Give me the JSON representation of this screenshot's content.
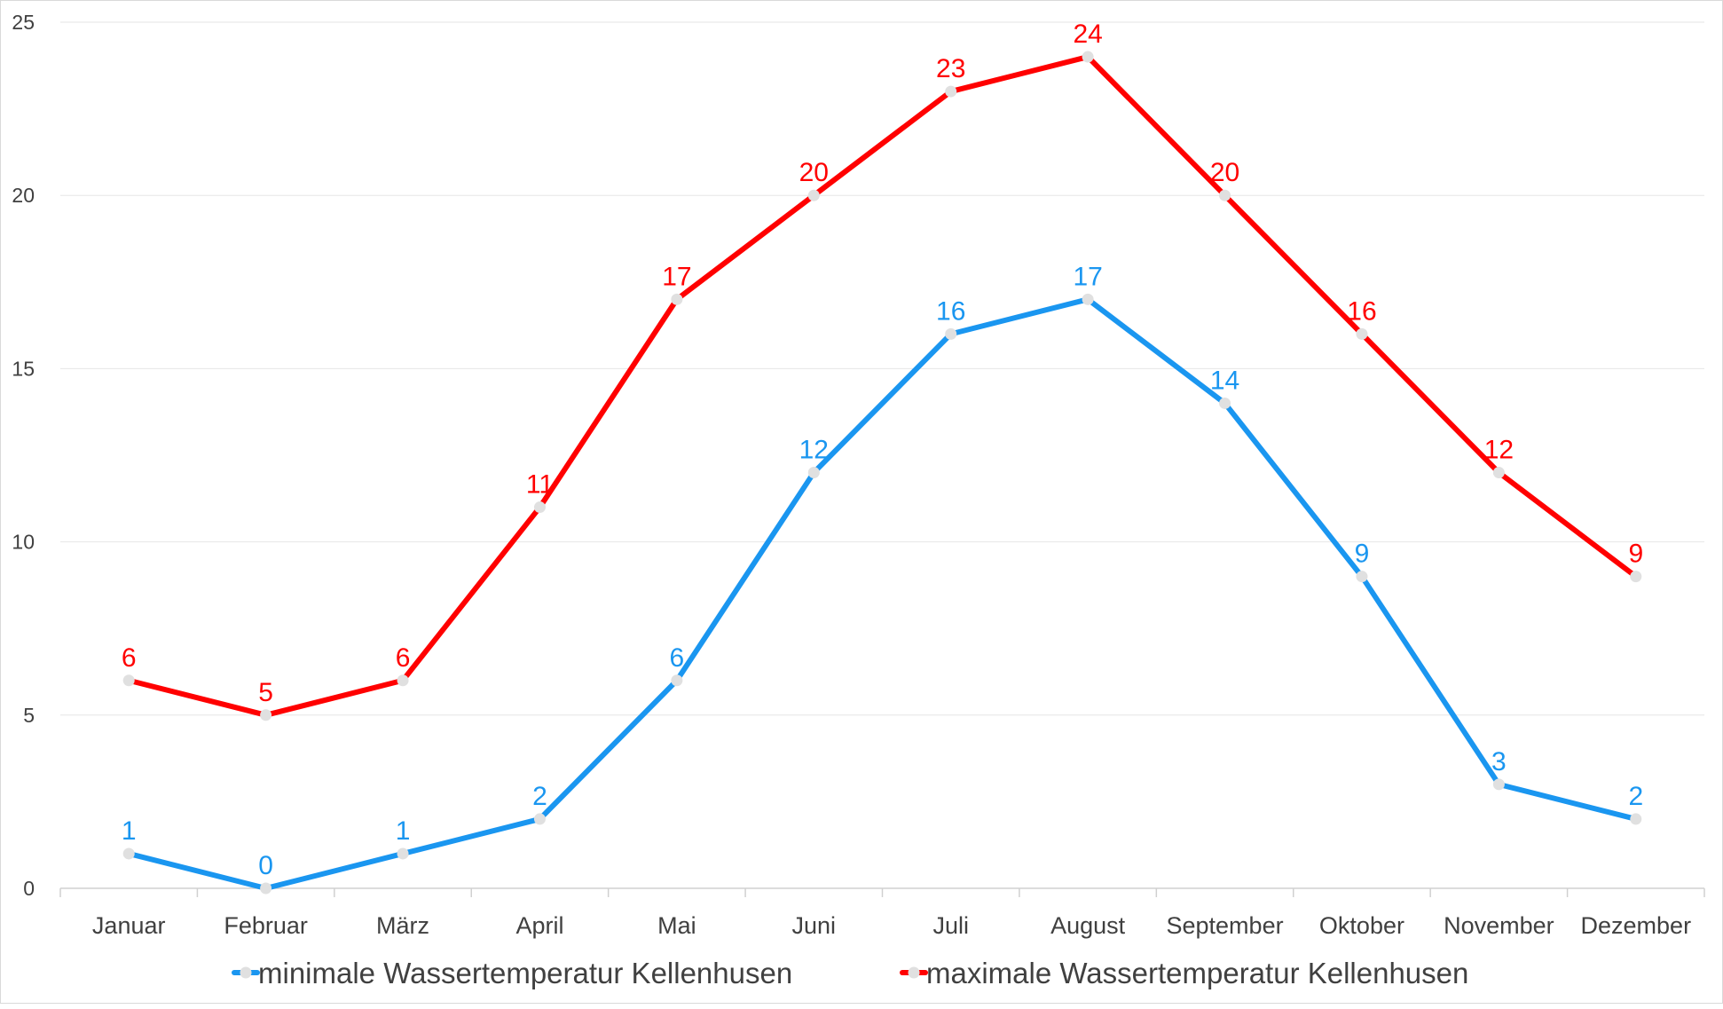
{
  "chart_data": {
    "type": "line",
    "categories": [
      "Januar",
      "Februar",
      "März",
      "April",
      "Mai",
      "Juni",
      "Juli",
      "August",
      "September",
      "Oktober",
      "November",
      "Dezember"
    ],
    "series": [
      {
        "name": "minimale Wassertemperatur Kellenhusen",
        "color": "#1a96f0",
        "values": [
          1,
          0,
          1,
          2,
          6,
          12,
          16,
          17,
          14,
          9,
          3,
          2
        ]
      },
      {
        "name": "maximale Wassertemperatur Kellenhusen",
        "color": "#ff0000",
        "values": [
          6,
          5,
          6,
          11,
          17,
          20,
          23,
          24,
          20,
          16,
          12,
          9
        ]
      }
    ],
    "yticks": [
      0,
      5,
      10,
      15,
      20,
      25
    ],
    "ylim": [
      0,
      25
    ],
    "grid": true,
    "legend": "bottom",
    "marker_color": "#e0e0e0"
  }
}
